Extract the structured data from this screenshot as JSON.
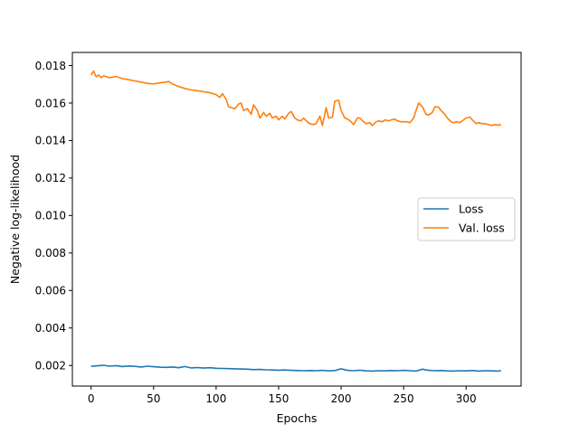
{
  "chart_data": {
    "type": "line",
    "title": "",
    "xlabel": "Epochs",
    "ylabel": "Negative log-likelihood",
    "xlim": [
      -15,
      344
    ],
    "ylim": [
      0.0009,
      0.0187
    ],
    "xticks": [
      0,
      50,
      100,
      150,
      200,
      250,
      300
    ],
    "yticks": [
      0.002,
      0.004,
      0.006,
      0.008,
      0.01,
      0.012,
      0.014,
      0.016,
      0.018
    ],
    "xtick_labels": [
      "0",
      "50",
      "100",
      "150",
      "200",
      "250",
      "300"
    ],
    "ytick_labels": [
      "0.002",
      "0.004",
      "0.006",
      "0.008",
      "0.010",
      "0.012",
      "0.014",
      "0.016",
      "0.018"
    ],
    "grid": false,
    "legend_position": "center-right",
    "series": [
      {
        "name": "Loss",
        "color": "#1f77b4",
        "x": [
          0,
          5,
          10,
          15,
          20,
          25,
          30,
          35,
          40,
          45,
          50,
          55,
          60,
          65,
          70,
          75,
          80,
          85,
          90,
          95,
          100,
          105,
          110,
          115,
          120,
          125,
          130,
          135,
          140,
          145,
          150,
          155,
          160,
          165,
          170,
          175,
          180,
          185,
          190,
          195,
          200,
          205,
          210,
          215,
          220,
          225,
          230,
          235,
          240,
          245,
          250,
          255,
          260,
          265,
          270,
          275,
          280,
          285,
          290,
          295,
          300,
          305,
          310,
          315,
          320,
          325,
          328
        ],
        "y": [
          0.00195,
          0.00198,
          0.00201,
          0.00196,
          0.00199,
          0.00194,
          0.00197,
          0.00195,
          0.00192,
          0.00196,
          0.00193,
          0.00191,
          0.0019,
          0.00192,
          0.00188,
          0.00194,
          0.00187,
          0.00189,
          0.00186,
          0.00188,
          0.00185,
          0.00184,
          0.00183,
          0.00182,
          0.00181,
          0.0018,
          0.00178,
          0.00179,
          0.00177,
          0.00176,
          0.00175,
          0.00176,
          0.00174,
          0.00173,
          0.00172,
          0.00173,
          0.00172,
          0.00174,
          0.00171,
          0.00173,
          0.00182,
          0.00174,
          0.00172,
          0.00175,
          0.00171,
          0.0017,
          0.00172,
          0.00171,
          0.00173,
          0.00172,
          0.00174,
          0.00172,
          0.0017,
          0.0018,
          0.00174,
          0.00172,
          0.00173,
          0.00171,
          0.0017,
          0.00172,
          0.00171,
          0.00173,
          0.0017,
          0.00172,
          0.00171,
          0.0017,
          0.00172
        ]
      },
      {
        "name": "Val. loss",
        "color": "#ff7f0e",
        "x": [
          0,
          2,
          4,
          6,
          8,
          10,
          15,
          20,
          25,
          30,
          35,
          40,
          45,
          50,
          55,
          60,
          62,
          65,
          70,
          75,
          80,
          85,
          90,
          95,
          100,
          103,
          105,
          108,
          110,
          115,
          118,
          120,
          122,
          125,
          128,
          130,
          133,
          135,
          138,
          140,
          143,
          145,
          148,
          150,
          153,
          155,
          158,
          160,
          163,
          165,
          168,
          170,
          173,
          175,
          178,
          180,
          183,
          185,
          188,
          190,
          193,
          195,
          198,
          200,
          203,
          205,
          208,
          210,
          213,
          215,
          218,
          220,
          223,
          225,
          228,
          230,
          233,
          235,
          238,
          240,
          243,
          245,
          248,
          250,
          253,
          255,
          258,
          260,
          262,
          265,
          268,
          270,
          273,
          275,
          278,
          280,
          283,
          285,
          288,
          290,
          293,
          295,
          298,
          300,
          303,
          305,
          308,
          310,
          313,
          315,
          318,
          320,
          323,
          325,
          328
        ],
        "y": [
          0.0175,
          0.0177,
          0.0174,
          0.0175,
          0.01735,
          0.01745,
          0.01735,
          0.01742,
          0.0173,
          0.01725,
          0.01718,
          0.01712,
          0.01705,
          0.01702,
          0.01708,
          0.01712,
          0.01715,
          0.01702,
          0.01688,
          0.01678,
          0.0167,
          0.01666,
          0.0166,
          0.01655,
          0.01645,
          0.0163,
          0.0165,
          0.0162,
          0.0158,
          0.0157,
          0.01595,
          0.016,
          0.0156,
          0.0157,
          0.0154,
          0.0159,
          0.0156,
          0.0152,
          0.0155,
          0.0153,
          0.01545,
          0.0152,
          0.0153,
          0.0151,
          0.0153,
          0.01515,
          0.01545,
          0.01555,
          0.0152,
          0.0151,
          0.01505,
          0.0152,
          0.015,
          0.0149,
          0.01485,
          0.0149,
          0.0153,
          0.0148,
          0.01575,
          0.0152,
          0.01525,
          0.0161,
          0.01615,
          0.0156,
          0.0152,
          0.01515,
          0.015,
          0.01485,
          0.0152,
          0.0152,
          0.015,
          0.0149,
          0.01495,
          0.0148,
          0.015,
          0.01505,
          0.015,
          0.0151,
          0.01505,
          0.0151,
          0.01515,
          0.01505,
          0.015,
          0.015,
          0.015,
          0.01495,
          0.0152,
          0.0156,
          0.016,
          0.0158,
          0.0154,
          0.01535,
          0.0155,
          0.0158,
          0.01578,
          0.0156,
          0.0154,
          0.0152,
          0.015,
          0.01495,
          0.015,
          0.01495,
          0.0151,
          0.0152,
          0.01525,
          0.0151,
          0.0149,
          0.01495,
          0.0149,
          0.0149,
          0.01485,
          0.0148,
          0.01485,
          0.01482,
          0.01485
        ]
      }
    ]
  }
}
